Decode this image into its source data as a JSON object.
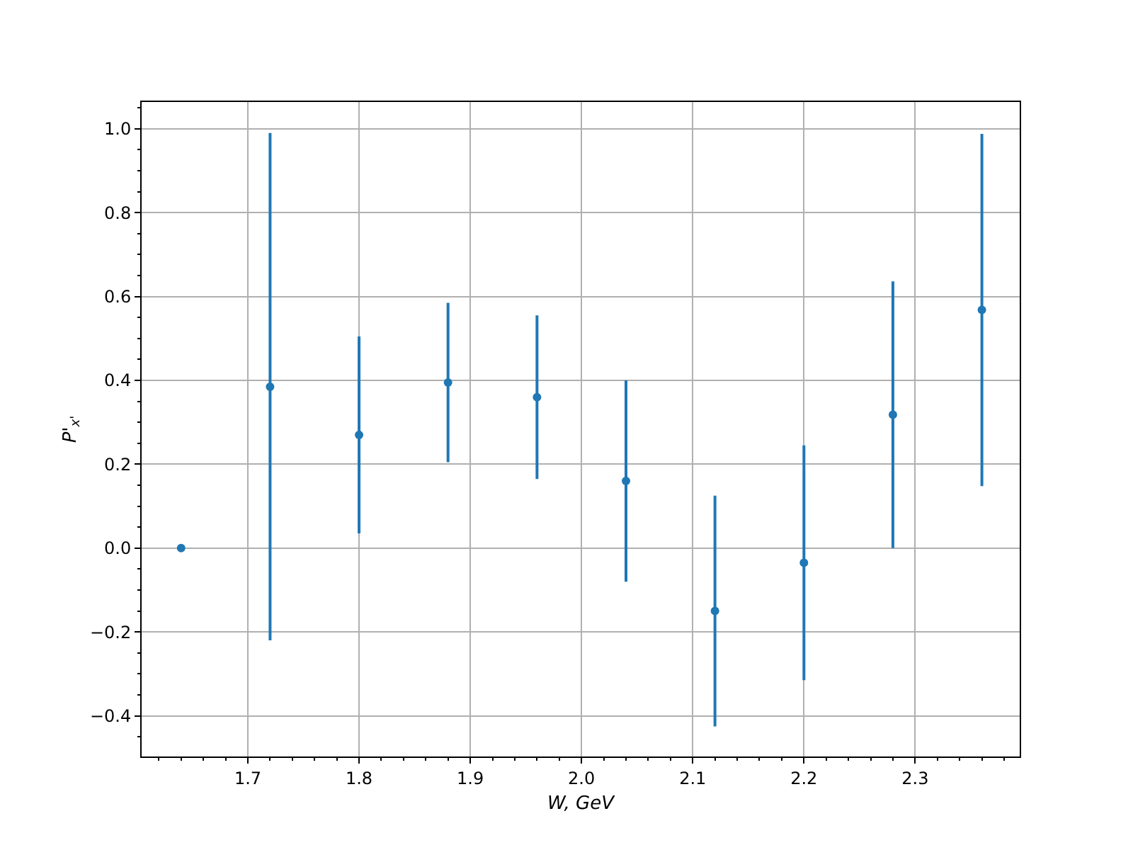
{
  "chart_data": {
    "type": "scatter",
    "xlabel": "W, GeV",
    "ylabel": "P'$_{x'}$",
    "x": [
      1.64,
      1.72,
      1.8,
      1.88,
      1.96,
      2.04,
      2.12,
      2.2,
      2.28,
      2.36
    ],
    "series": [
      {
        "color": "#1f77b4",
        "values": [
          0,
          0.385,
          0.27,
          0.395,
          0.36,
          0.16,
          -0.15,
          -0.035,
          0.318,
          0.568
        ],
        "errors": [
          null,
          0.605,
          0.235,
          0.19,
          0.195,
          0.24,
          0.275,
          0.28,
          0.318,
          0.42
        ]
      }
    ],
    "xlim": [
      1.6045,
      2.394
    ],
    "xticks": [
      1.7,
      1.8,
      1.9,
      {
        "value": 2,
        "label": "2.0"
      },
      2.1,
      2.2,
      2.3
    ],
    "ylim": [
      -0.497,
      1.064
    ],
    "yticks": [
      {
        "value": -0.4,
        "label": "−0.4"
      },
      {
        "value": -0.2,
        "label": "−0.2"
      },
      {
        "value": 0,
        "label": "0.0"
      },
      0.2,
      0.4,
      0.6,
      0.8,
      {
        "value": 1,
        "label": "1.0"
      }
    ],
    "grid": true,
    "marker": "circle"
  }
}
